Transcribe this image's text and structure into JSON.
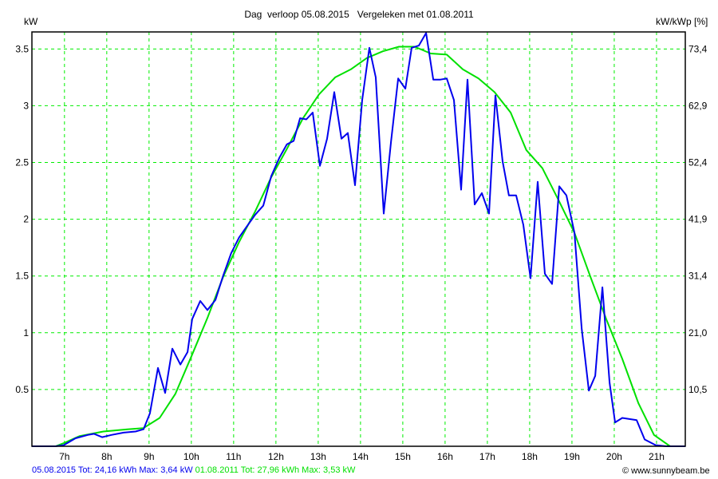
{
  "chart_data": {
    "type": "line",
    "title": "Dag  verloop 05.08.2015   Vergeleken met 01.08.2011",
    "ylabel": "kW",
    "y2label": "kW/kWp [%]",
    "xlim": [
      6.23,
      21.68
    ],
    "ylim": [
      0,
      3.65
    ],
    "grid": true,
    "xticks": [
      7,
      8,
      9,
      10,
      11,
      12,
      13,
      14,
      15,
      16,
      17,
      18,
      19,
      20,
      21
    ],
    "xtick_labels": [
      "7h",
      "8h",
      "9h",
      "10h",
      "11h",
      "12h",
      "13h",
      "14h",
      "15h",
      "16h",
      "17h",
      "18h",
      "19h",
      "20h",
      "21h"
    ],
    "yticks": [
      0.5,
      1,
      1.5,
      2,
      2.5,
      3,
      3.5
    ],
    "ytick_labels": [
      "0.5",
      "1",
      "1.5",
      "2",
      "2.5",
      "3",
      "3.5"
    ],
    "y2tick_labels": [
      "10,5",
      "21,0",
      "31,4",
      "41,9",
      "52,4",
      "62,9",
      "73,4"
    ],
    "series": [
      {
        "name": "05.08.2015",
        "color": "#0000ee",
        "x": [
          6.23,
          6.79,
          6.98,
          7.26,
          7.55,
          7.7,
          7.89,
          8.11,
          8.4,
          8.68,
          8.87,
          9.02,
          9.21,
          9.38,
          9.55,
          9.74,
          9.91,
          10.02,
          10.21,
          10.38,
          10.57,
          10.75,
          10.94,
          11.13,
          11.32,
          11.51,
          11.7,
          11.89,
          12.08,
          12.26,
          12.42,
          12.57,
          12.72,
          12.87,
          13.04,
          13.21,
          13.38,
          13.55,
          13.7,
          13.87,
          14.04,
          14.21,
          14.36,
          14.55,
          14.72,
          14.89,
          15.06,
          15.21,
          15.38,
          15.55,
          15.72,
          15.89,
          16.04,
          16.21,
          16.38,
          16.53,
          16.7,
          16.87,
          17.04,
          17.19,
          17.36,
          17.51,
          17.68,
          17.85,
          18.02,
          18.19,
          18.36,
          18.53,
          18.7,
          18.87,
          19.06,
          19.23,
          19.4,
          19.55,
          19.72,
          19.89,
          20.02,
          20.19,
          20.53,
          20.72,
          20.98,
          21.23,
          21.68
        ],
        "y": [
          0,
          0,
          0.01,
          0.07,
          0.1,
          0.11,
          0.08,
          0.1,
          0.12,
          0.13,
          0.15,
          0.29,
          0.69,
          0.47,
          0.86,
          0.72,
          0.83,
          1.12,
          1.28,
          1.2,
          1.29,
          1.5,
          1.7,
          1.84,
          1.94,
          2.04,
          2.12,
          2.38,
          2.54,
          2.66,
          2.69,
          2.89,
          2.88,
          2.94,
          2.47,
          2.71,
          3.12,
          2.71,
          2.76,
          2.3,
          3.05,
          3.51,
          3.25,
          2.05,
          2.68,
          3.24,
          3.15,
          3.51,
          3.53,
          3.64,
          3.23,
          3.23,
          3.24,
          3.05,
          2.26,
          3.23,
          2.13,
          2.23,
          2.05,
          3.09,
          2.51,
          2.21,
          2.21,
          1.95,
          1.48,
          2.33,
          1.52,
          1.43,
          2.29,
          2.21,
          1.88,
          1.04,
          0.49,
          0.62,
          1.4,
          0.56,
          0.21,
          0.25,
          0.23,
          0.06,
          0.01,
          0,
          0
        ]
      },
      {
        "name": "01.08.2011",
        "color": "#00e000",
        "x": [
          6.23,
          6.79,
          7.0,
          7.36,
          7.92,
          8.49,
          8.87,
          9.25,
          9.62,
          10.0,
          10.38,
          10.75,
          11.13,
          11.51,
          11.89,
          12.26,
          12.64,
          13.02,
          13.4,
          13.77,
          14.15,
          14.53,
          14.91,
          15.28,
          15.66,
          16.04,
          16.42,
          16.79,
          17.17,
          17.55,
          17.92,
          18.3,
          18.68,
          19.06,
          19.43,
          19.81,
          20.19,
          20.57,
          20.94,
          21.32
        ],
        "y": [
          0,
          0,
          0.03,
          0.09,
          0.13,
          0.15,
          0.16,
          0.25,
          0.46,
          0.79,
          1.13,
          1.49,
          1.8,
          2.07,
          2.37,
          2.62,
          2.89,
          3.1,
          3.25,
          3.32,
          3.42,
          3.48,
          3.52,
          3.52,
          3.46,
          3.45,
          3.32,
          3.24,
          3.12,
          2.94,
          2.61,
          2.45,
          2.17,
          1.88,
          1.5,
          1.12,
          0.77,
          0.38,
          0.1,
          0
        ]
      }
    ]
  },
  "footer": {
    "blue_summary": "05.08.2015 Tot: 24,16 kWh Max: 3,64 kW",
    "green_summary": " 01.08.2011 Tot: 27,96 kWh Max: 3,53 kW",
    "credit": "© www.sunnybeam.be"
  }
}
